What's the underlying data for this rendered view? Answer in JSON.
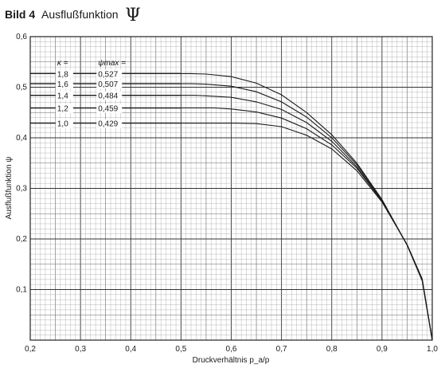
{
  "figure": {
    "label": "Bild 4",
    "name": "Ausflußfunktion",
    "symbol": "Ψ"
  },
  "chart_data": {
    "type": "line",
    "xlabel": "Druckverhältnis p_a/p",
    "ylabel": "Ausflußfunktion ψ",
    "xlim": [
      0.2,
      1.0
    ],
    "ylim": [
      0.0,
      0.6
    ],
    "xticks": [
      "0,2",
      "0,3",
      "0,4",
      "0,5",
      "0,6",
      "0,7",
      "0,8",
      "0,9",
      "1,0"
    ],
    "yticks": [
      "0,1",
      "0,2",
      "0,3",
      "0,4",
      "0,5",
      "0,6"
    ],
    "grid": true,
    "legend_header": {
      "kappa": "κ =",
      "psi_max": "ψmax ="
    },
    "series": [
      {
        "kappa": 1.8,
        "kappa_label": "1,8",
        "psi_max": 0.527,
        "psi_max_label": "0,527",
        "x": [
          0.2,
          0.3,
          0.4,
          0.5,
          0.52,
          0.55,
          0.6,
          0.65,
          0.7,
          0.75,
          0.8,
          0.85,
          0.9,
          0.95,
          0.98,
          1.0
        ],
        "y": [
          0.527,
          0.527,
          0.527,
          0.527,
          0.527,
          0.526,
          0.521,
          0.508,
          0.485,
          0.45,
          0.406,
          0.35,
          0.278,
          0.188,
          0.117,
          0.0
        ]
      },
      {
        "kappa": 1.6,
        "kappa_label": "1,6",
        "psi_max": 0.507,
        "psi_max_label": "0,507",
        "x": [
          0.2,
          0.3,
          0.4,
          0.5,
          0.52,
          0.55,
          0.6,
          0.65,
          0.7,
          0.75,
          0.8,
          0.85,
          0.9,
          0.95,
          0.98,
          1.0
        ],
        "y": [
          0.507,
          0.507,
          0.507,
          0.507,
          0.507,
          0.506,
          0.502,
          0.491,
          0.471,
          0.441,
          0.4,
          0.347,
          0.277,
          0.188,
          0.118,
          0.0
        ]
      },
      {
        "kappa": 1.4,
        "kappa_label": "1,4",
        "psi_max": 0.484,
        "psi_max_label": "0,484",
        "x": [
          0.2,
          0.3,
          0.4,
          0.5,
          0.528,
          0.55,
          0.6,
          0.65,
          0.7,
          0.75,
          0.8,
          0.85,
          0.9,
          0.95,
          0.98,
          1.0
        ],
        "y": [
          0.484,
          0.484,
          0.484,
          0.484,
          0.484,
          0.483,
          0.48,
          0.471,
          0.456,
          0.43,
          0.393,
          0.343,
          0.275,
          0.188,
          0.119,
          0.0
        ]
      },
      {
        "kappa": 1.2,
        "kappa_label": "1,2",
        "psi_max": 0.459,
        "psi_max_label": "0,459",
        "x": [
          0.2,
          0.3,
          0.4,
          0.5,
          0.565,
          0.6,
          0.65,
          0.7,
          0.75,
          0.8,
          0.85,
          0.9,
          0.95,
          0.98,
          1.0
        ],
        "y": [
          0.459,
          0.459,
          0.459,
          0.459,
          0.459,
          0.457,
          0.451,
          0.439,
          0.418,
          0.386,
          0.34,
          0.275,
          0.189,
          0.12,
          0.0
        ]
      },
      {
        "kappa": 1.0,
        "kappa_label": "1,0",
        "psi_max": 0.429,
        "psi_max_label": "0,429",
        "x": [
          0.2,
          0.3,
          0.4,
          0.5,
          0.6,
          0.607,
          0.65,
          0.7,
          0.75,
          0.8,
          0.85,
          0.9,
          0.95,
          0.98,
          1.0
        ],
        "y": [
          0.429,
          0.429,
          0.429,
          0.429,
          0.429,
          0.429,
          0.428,
          0.422,
          0.405,
          0.378,
          0.335,
          0.273,
          0.189,
          0.121,
          0.0
        ]
      }
    ]
  }
}
